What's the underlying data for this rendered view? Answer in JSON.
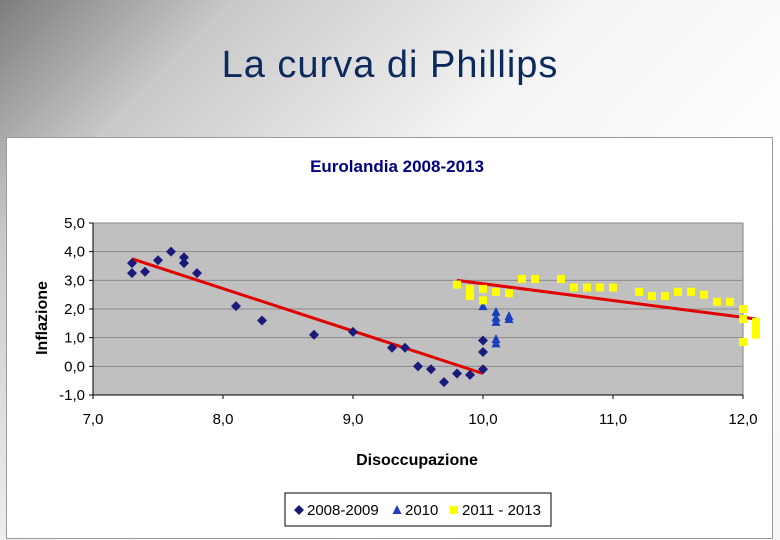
{
  "slide": {
    "title": "La curva di Phillips"
  },
  "colors": {
    "series1": "#1a1a7a",
    "series2": "#1a3fbf",
    "series3": "#ffff00",
    "trend": "#e00000",
    "plot_bg": "#c0c0c0",
    "grid": "#8a8a8a"
  },
  "chart_data": {
    "type": "scatter",
    "title": "Eurolandia 2008-2013",
    "xlabel": "Disoccupazione",
    "ylabel": "Inflazione",
    "xlim": [
      7.0,
      12.0
    ],
    "ylim": [
      -1.0,
      5.0
    ],
    "x_ticks": [
      "7,0",
      "8,0",
      "9,0",
      "10,0",
      "11,0",
      "12,0"
    ],
    "y_ticks": [
      "-1,0",
      "0,0",
      "1,0",
      "2,0",
      "3,0",
      "4,0",
      "5,0"
    ],
    "legend_position": "bottom",
    "series": [
      {
        "name": "2008-2009",
        "marker": "diamond",
        "points": [
          [
            7.3,
            3.6
          ],
          [
            7.3,
            3.25
          ],
          [
            7.4,
            3.3
          ],
          [
            7.5,
            3.7
          ],
          [
            7.6,
            4.0
          ],
          [
            7.7,
            3.8
          ],
          [
            7.7,
            3.6
          ],
          [
            7.8,
            3.25
          ],
          [
            8.1,
            2.1
          ],
          [
            8.3,
            1.6
          ],
          [
            8.7,
            1.1
          ],
          [
            9.0,
            1.2
          ],
          [
            9.3,
            0.65
          ],
          [
            9.4,
            0.65
          ],
          [
            9.5,
            0.0
          ],
          [
            9.6,
            -0.1
          ],
          [
            9.7,
            -0.55
          ],
          [
            9.8,
            -0.25
          ],
          [
            9.9,
            -0.3
          ],
          [
            10.0,
            -0.1
          ],
          [
            10.0,
            0.5
          ],
          [
            10.0,
            0.9
          ]
        ]
      },
      {
        "name": "2010",
        "marker": "triangle",
        "points": [
          [
            10.0,
            2.1
          ],
          [
            10.1,
            1.9
          ],
          [
            10.1,
            1.7
          ],
          [
            10.1,
            1.55
          ],
          [
            10.1,
            0.95
          ],
          [
            10.1,
            0.8
          ],
          [
            10.2,
            1.75
          ],
          [
            10.2,
            1.65
          ]
        ]
      },
      {
        "name": "2011 - 2013",
        "marker": "square",
        "points": [
          [
            9.8,
            2.85
          ],
          [
            9.9,
            2.7
          ],
          [
            9.9,
            2.45
          ],
          [
            10.0,
            2.7
          ],
          [
            10.0,
            2.3
          ],
          [
            10.1,
            2.6
          ],
          [
            10.2,
            2.55
          ],
          [
            10.3,
            3.05
          ],
          [
            10.4,
            3.05
          ],
          [
            10.6,
            3.05
          ],
          [
            10.7,
            2.75
          ],
          [
            10.8,
            2.75
          ],
          [
            10.9,
            2.75
          ],
          [
            11.0,
            2.75
          ],
          [
            11.2,
            2.6
          ],
          [
            11.3,
            2.45
          ],
          [
            11.4,
            2.45
          ],
          [
            11.5,
            2.6
          ],
          [
            11.6,
            2.6
          ],
          [
            11.7,
            2.5
          ],
          [
            11.8,
            2.25
          ],
          [
            11.9,
            2.25
          ],
          [
            12.0,
            2.0
          ],
          [
            12.0,
            1.65
          ],
          [
            12.0,
            0.85
          ],
          [
            12.1,
            1.55
          ],
          [
            12.1,
            1.3
          ],
          [
            12.1,
            1.1
          ]
        ]
      }
    ],
    "trendlines": [
      {
        "name": "trend-2008-2009",
        "from": [
          7.3,
          3.75
        ],
        "to": [
          10.0,
          -0.25
        ]
      },
      {
        "name": "trend-2011-2013",
        "from": [
          9.8,
          3.0
        ],
        "to": [
          12.1,
          1.65
        ]
      }
    ]
  }
}
